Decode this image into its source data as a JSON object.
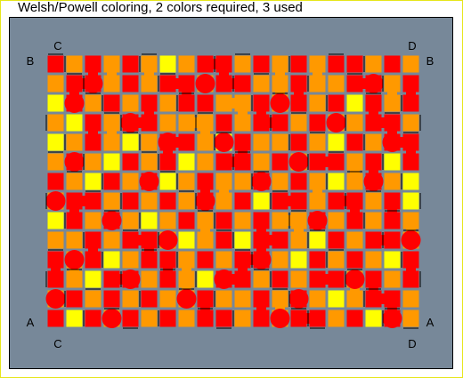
{
  "title": "Welsh/Powell coloring, 2 colors required, 3 used",
  "corner_labels": {
    "top_left": "C",
    "top_right": "D",
    "left_top": "B",
    "right_top": "B",
    "left_bottom": "A",
    "right_bottom": "A",
    "bottom_left": "C",
    "bottom_right": "D"
  },
  "colors": {
    "panel": "#778899",
    "wall": "#000000",
    "color_1": "#ff0000",
    "color_2": "#ff9900",
    "color_3": "#ffff00"
  },
  "grid": {
    "rows": 14,
    "cols": 20,
    "palette_names": [
      "red",
      "orange",
      "yellow"
    ],
    "cells": [
      [
        0,
        1,
        0,
        1,
        0,
        1,
        2,
        1,
        0,
        0,
        1,
        0,
        1,
        0,
        1,
        0,
        0,
        1,
        0,
        1
      ],
      [
        1,
        0,
        0,
        1,
        0,
        1,
        0,
        0,
        1,
        0,
        0,
        1,
        1,
        0,
        1,
        1,
        0,
        0,
        1,
        0
      ],
      [
        2,
        0,
        1,
        0,
        1,
        0,
        1,
        0,
        0,
        1,
        1,
        0,
        1,
        0,
        1,
        0,
        2,
        0,
        1,
        0
      ],
      [
        1,
        2,
        0,
        1,
        0,
        0,
        1,
        1,
        1,
        0,
        1,
        0,
        0,
        1,
        0,
        1,
        1,
        0,
        0,
        1
      ],
      [
        2,
        1,
        0,
        1,
        2,
        1,
        0,
        0,
        1,
        2,
        0,
        1,
        1,
        0,
        1,
        2,
        0,
        1,
        0,
        0
      ],
      [
        1,
        0,
        1,
        2,
        0,
        1,
        0,
        2,
        1,
        0,
        0,
        1,
        0,
        1,
        0,
        0,
        1,
        0,
        2,
        0
      ],
      [
        0,
        1,
        2,
        0,
        1,
        0,
        2,
        1,
        0,
        1,
        1,
        0,
        1,
        0,
        1,
        2,
        1,
        0,
        1,
        2
      ],
      [
        1,
        0,
        0,
        1,
        0,
        1,
        0,
        1,
        0,
        1,
        0,
        2,
        0,
        0,
        1,
        0,
        0,
        1,
        0,
        2
      ],
      [
        2,
        0,
        1,
        0,
        1,
        2,
        1,
        0,
        1,
        0,
        1,
        0,
        1,
        1,
        0,
        1,
        0,
        1,
        0,
        1
      ],
      [
        1,
        1,
        0,
        1,
        0,
        0,
        1,
        2,
        1,
        0,
        2,
        0,
        0,
        1,
        2,
        0,
        1,
        0,
        0,
        1
      ],
      [
        0,
        1,
        0,
        2,
        1,
        0,
        0,
        1,
        0,
        1,
        0,
        0,
        1,
        2,
        0,
        1,
        0,
        1,
        2,
        0
      ],
      [
        0,
        1,
        2,
        0,
        0,
        1,
        0,
        1,
        2,
        0,
        0,
        1,
        0,
        1,
        0,
        0,
        1,
        0,
        1,
        0
      ],
      [
        1,
        0,
        1,
        0,
        1,
        0,
        1,
        1,
        0,
        1,
        1,
        0,
        1,
        0,
        1,
        2,
        1,
        0,
        0,
        1
      ],
      [
        0,
        2,
        0,
        1,
        0,
        1,
        0,
        1,
        0,
        0,
        1,
        0,
        1,
        0,
        0,
        1,
        0,
        2,
        0,
        1
      ]
    ]
  }
}
